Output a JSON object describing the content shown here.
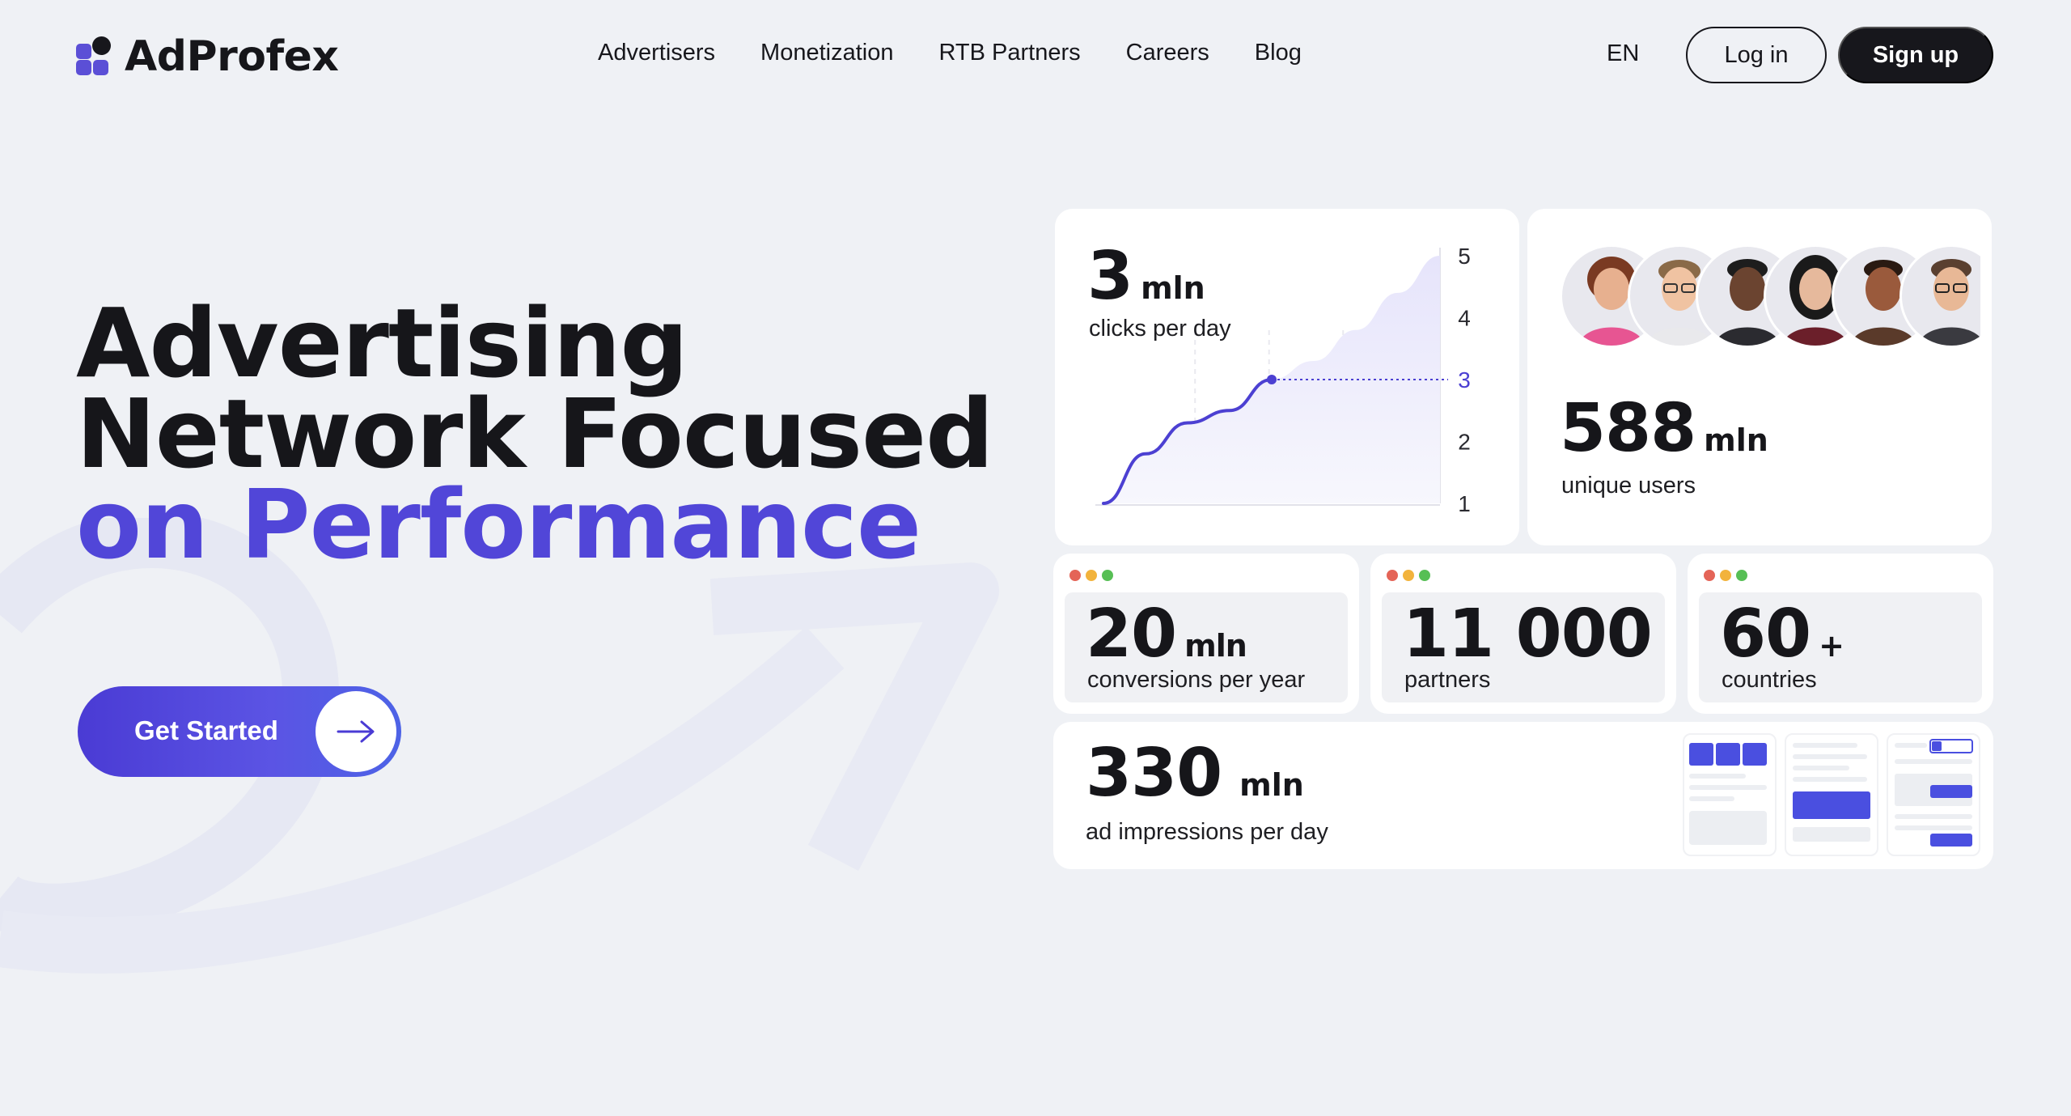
{
  "header": {
    "logo_text": "AdProfex",
    "nav": [
      "Advertisers",
      "Monetization",
      "RTB Partners",
      "Careers",
      "Blog"
    ],
    "lang": "EN",
    "login_label": "Log in",
    "signup_label": "Sign up"
  },
  "hero": {
    "title_line1": "Advertising",
    "title_line2": "Network Focused",
    "title_line3": "on Performance",
    "cta_label": "Get Started"
  },
  "stats": {
    "clicks": {
      "number": "3",
      "unit": "mln",
      "caption": "clicks per day"
    },
    "users": {
      "number": "588",
      "unit": "mln",
      "caption": "unique users"
    },
    "conversions": {
      "number": "20",
      "unit": "mln",
      "caption": "conversions per year"
    },
    "partners": {
      "number": "11 000",
      "unit": "",
      "caption": "partners"
    },
    "countries": {
      "number": "60",
      "unit": "+",
      "caption": "countries"
    },
    "impressions": {
      "number": "330",
      "unit": "mln",
      "caption": "ad impressions per day"
    }
  },
  "chart_data": {
    "type": "line",
    "title": "",
    "xlabel": "",
    "ylabel": "",
    "y_ticks": [
      "5",
      "4",
      "3",
      "2",
      "1"
    ],
    "ylim": [
      1,
      5
    ],
    "highlight": 3,
    "series": [
      {
        "values": [
          1,
          1.8,
          2.3,
          2.5,
          3,
          3.3,
          3.8,
          4.4,
          5.0
        ]
      }
    ]
  },
  "colors": {
    "accent": "#5146d8",
    "dark": "#17171c",
    "background": "#eff1f5"
  }
}
